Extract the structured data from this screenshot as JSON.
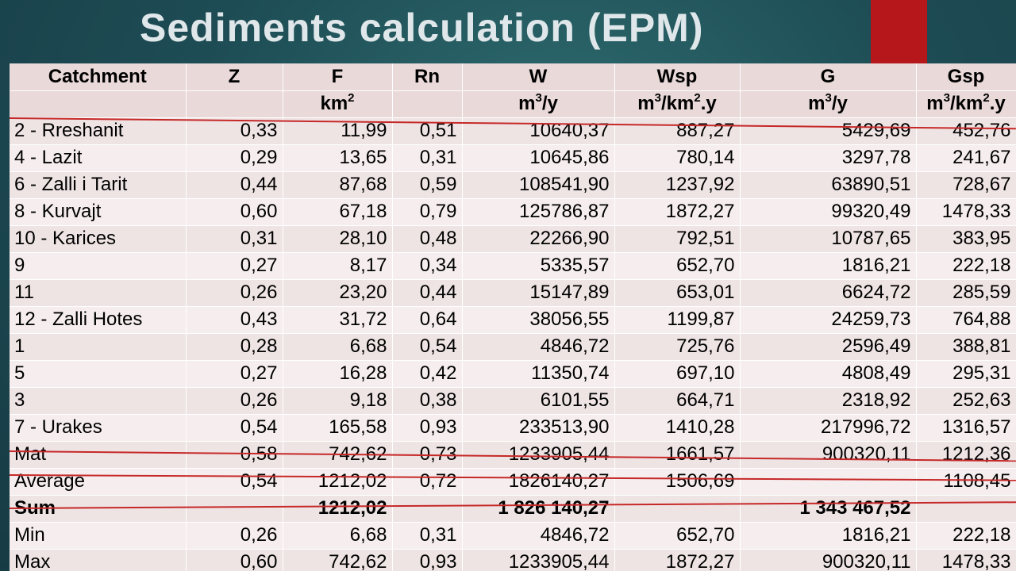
{
  "title": "Sediments calculation (EPM)",
  "header": {
    "names": [
      "Catchment",
      "Z",
      "F",
      "Rn",
      "W",
      "Wsp",
      "G",
      "Gsp"
    ],
    "units": [
      {
        "base": "",
        "sup": "",
        "tail": ""
      },
      {
        "base": "",
        "sup": "",
        "tail": ""
      },
      {
        "base": "km",
        "sup": "2",
        "tail": ""
      },
      {
        "base": "",
        "sup": "",
        "tail": ""
      },
      {
        "base": "m",
        "sup": "3",
        "tail": "/y"
      },
      {
        "base": "m",
        "sup": "3",
        "tail": "/km",
        "sup2": "2",
        "tail2": ".y"
      },
      {
        "base": "m",
        "sup": "3",
        "tail": "/y"
      },
      {
        "base": "m",
        "sup": "3",
        "tail": "/km",
        "sup2": "2",
        "tail2": ".y"
      }
    ]
  },
  "rows": [
    [
      "2 - Rreshanit",
      "0,33",
      "11,99",
      "0,51",
      "10640,37",
      "887,27",
      "5429,69",
      "452,76"
    ],
    [
      "4 - Lazit",
      "0,29",
      "13,65",
      "0,31",
      "10645,86",
      "780,14",
      "3297,78",
      "241,67"
    ],
    [
      "6 - Zalli i Tarit",
      "0,44",
      "87,68",
      "0,59",
      "108541,90",
      "1237,92",
      "63890,51",
      "728,67"
    ],
    [
      "8 - Kurvajt",
      "0,60",
      "67,18",
      "0,79",
      "125786,87",
      "1872,27",
      "99320,49",
      "1478,33"
    ],
    [
      "10 - Karices",
      "0,31",
      "28,10",
      "0,48",
      "22266,90",
      "792,51",
      "10787,65",
      "383,95"
    ],
    [
      "9",
      "0,27",
      "8,17",
      "0,34",
      "5335,57",
      "652,70",
      "1816,21",
      "222,18"
    ],
    [
      "11",
      "0,26",
      "23,20",
      "0,44",
      "15147,89",
      "653,01",
      "6624,72",
      "285,59"
    ],
    [
      "12 - Zalli Hotes",
      "0,43",
      "31,72",
      "0,64",
      "38056,55",
      "1199,87",
      "24259,73",
      "764,88"
    ],
    [
      "1",
      "0,28",
      "6,68",
      "0,54",
      "4846,72",
      "725,76",
      "2596,49",
      "388,81"
    ],
    [
      "5",
      "0,27",
      "16,28",
      "0,42",
      "11350,74",
      "697,10",
      "4808,49",
      "295,31"
    ],
    [
      "3",
      "0,26",
      "9,18",
      "0,38",
      "6101,55",
      "664,71",
      "2318,92",
      "252,63"
    ],
    [
      "7 - Urakes",
      "0,54",
      "165,58",
      "0,93",
      "233513,90",
      "1410,28",
      "217996,72",
      "1316,57"
    ],
    [
      "Mat",
      "0,58",
      "742,62",
      "0,73",
      "1233905,44",
      "1661,57",
      "900320,11",
      "1212,36"
    ],
    [
      "Average",
      "0,54",
      "1212,02",
      "0,72",
      "1826140,27",
      "1506,69",
      "",
      "1108,45"
    ],
    [
      "Sum",
      "",
      "1212,02",
      "",
      "1 826 140,27",
      "",
      "1 343 467,52",
      ""
    ],
    [
      "Min",
      "0,26",
      "6,68",
      "0,31",
      "4846,72",
      "652,70",
      "1816,21",
      "222,18"
    ],
    [
      "Max",
      "0,60",
      "742,62",
      "0,93",
      "1233905,44",
      "1872,27",
      "900320,11",
      "1478,33"
    ]
  ],
  "bold_rows": [
    14
  ],
  "colors": {
    "accent": "#b5171a",
    "annotation_line": "#c62828",
    "background": "#1e4d55"
  }
}
